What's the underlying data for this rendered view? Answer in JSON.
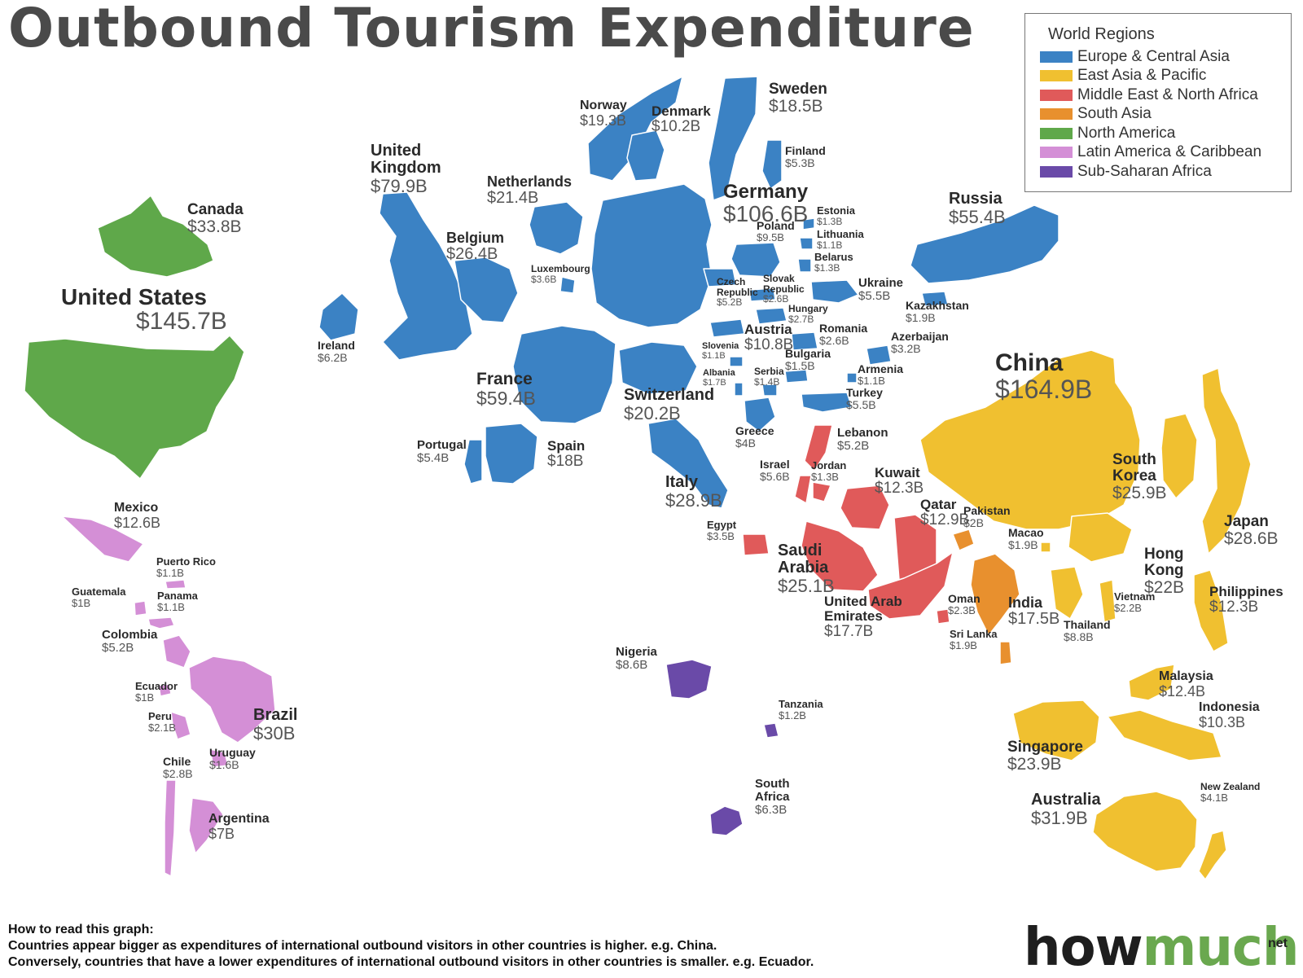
{
  "title": "Outbound Tourism Expenditure",
  "legend": {
    "title": "World Regions",
    "items": [
      {
        "key": "europe",
        "label": "Europe & Central Asia",
        "color": "#3b82c4"
      },
      {
        "key": "eastasia",
        "label": "East Asia & Pacific",
        "color": "#f0c030"
      },
      {
        "key": "mena",
        "label": "Middle East & North Africa",
        "color": "#e05a5a"
      },
      {
        "key": "southasia",
        "label": "South Asia",
        "color": "#e8902e"
      },
      {
        "key": "northamerica",
        "label": "North America",
        "color": "#5fa84a"
      },
      {
        "key": "latam",
        "label": "Latin America & Caribbean",
        "color": "#d48fd6"
      },
      {
        "key": "africa",
        "label": "Sub-Saharan Africa",
        "color": "#6a4aa8"
      }
    ]
  },
  "countries": [
    {
      "name": "United States",
      "value": "$145.7B",
      "region": "northamerica"
    },
    {
      "name": "Canada",
      "value": "$33.8B",
      "region": "northamerica"
    },
    {
      "name": "Mexico",
      "value": "$12.6B",
      "region": "latam"
    },
    {
      "name": "Puerto Rico",
      "value": "$1.1B",
      "region": "latam"
    },
    {
      "name": "Guatemala",
      "value": "$1B",
      "region": "latam"
    },
    {
      "name": "Panama",
      "value": "$1.1B",
      "region": "latam"
    },
    {
      "name": "Colombia",
      "value": "$5.2B",
      "region": "latam"
    },
    {
      "name": "Ecuador",
      "value": "$1B",
      "region": "latam"
    },
    {
      "name": "Peru",
      "value": "$2.1B",
      "region": "latam"
    },
    {
      "name": "Brazil",
      "value": "$30B",
      "region": "latam"
    },
    {
      "name": "Uruguay",
      "value": "$1.6B",
      "region": "latam"
    },
    {
      "name": "Chile",
      "value": "$2.8B",
      "region": "latam"
    },
    {
      "name": "Argentina",
      "value": "$7B",
      "region": "latam"
    },
    {
      "name": "United Kingdom",
      "value": "$79.9B",
      "region": "europe"
    },
    {
      "name": "Ireland",
      "value": "$6.2B",
      "region": "europe"
    },
    {
      "name": "Norway",
      "value": "$19.3B",
      "region": "europe"
    },
    {
      "name": "Denmark",
      "value": "$10.2B",
      "region": "europe"
    },
    {
      "name": "Sweden",
      "value": "$18.5B",
      "region": "europe"
    },
    {
      "name": "Finland",
      "value": "$5.3B",
      "region": "europe"
    },
    {
      "name": "Netherlands",
      "value": "$21.4B",
      "region": "europe"
    },
    {
      "name": "Belgium",
      "value": "$26.4B",
      "region": "europe"
    },
    {
      "name": "Luxembourg",
      "value": "$3.6B",
      "region": "europe"
    },
    {
      "name": "Germany",
      "value": "$106.6B",
      "region": "europe"
    },
    {
      "name": "France",
      "value": "$59.4B",
      "region": "europe"
    },
    {
      "name": "Switzerland",
      "value": "$20.2B",
      "region": "europe"
    },
    {
      "name": "Portugal",
      "value": "$5.4B",
      "region": "europe"
    },
    {
      "name": "Spain",
      "value": "$18B",
      "region": "europe"
    },
    {
      "name": "Italy",
      "value": "$28.9B",
      "region": "europe"
    },
    {
      "name": "Estonia",
      "value": "$1.3B",
      "region": "europe"
    },
    {
      "name": "Poland",
      "value": "$9.5B",
      "region": "europe"
    },
    {
      "name": "Lithuania",
      "value": "$1.1B",
      "region": "europe"
    },
    {
      "name": "Belarus",
      "value": "$1.3B",
      "region": "europe"
    },
    {
      "name": "Czech Republic",
      "value": "$5.2B",
      "region": "europe"
    },
    {
      "name": "Slovak Republic",
      "value": "$2.6B",
      "region": "europe"
    },
    {
      "name": "Ukraine",
      "value": "$5.5B",
      "region": "europe"
    },
    {
      "name": "Hungary",
      "value": "$2.7B",
      "region": "europe"
    },
    {
      "name": "Austria",
      "value": "$10.8B",
      "region": "europe"
    },
    {
      "name": "Romania",
      "value": "$2.6B",
      "region": "europe"
    },
    {
      "name": "Slovenia",
      "value": "$1.1B",
      "region": "europe"
    },
    {
      "name": "Bulgaria",
      "value": "$1.5B",
      "region": "europe"
    },
    {
      "name": "Albania",
      "value": "$1.7B",
      "region": "europe"
    },
    {
      "name": "Serbia",
      "value": "$1.4B",
      "region": "europe"
    },
    {
      "name": "Greece",
      "value": "$4B",
      "region": "europe"
    },
    {
      "name": "Armenia",
      "value": "$1.1B",
      "region": "europe"
    },
    {
      "name": "Azerbaijan",
      "value": "$3.2B",
      "region": "europe"
    },
    {
      "name": "Turkey",
      "value": "$5.5B",
      "region": "europe"
    },
    {
      "name": "Russia",
      "value": "$55.4B",
      "region": "europe"
    },
    {
      "name": "Kazakhstan",
      "value": "$1.9B",
      "region": "europe"
    },
    {
      "name": "Lebanon",
      "value": "$5.2B",
      "region": "mena"
    },
    {
      "name": "Israel",
      "value": "$5.6B",
      "region": "mena"
    },
    {
      "name": "Jordan",
      "value": "$1.3B",
      "region": "mena"
    },
    {
      "name": "Kuwait",
      "value": "$12.3B",
      "region": "mena"
    },
    {
      "name": "Qatar",
      "value": "$12.9B",
      "region": "mena"
    },
    {
      "name": "Egypt",
      "value": "$3.5B",
      "region": "mena"
    },
    {
      "name": "Saudi Arabia",
      "value": "$25.1B",
      "region": "mena"
    },
    {
      "name": "United Arab Emirates",
      "value": "$17.7B",
      "region": "mena"
    },
    {
      "name": "Oman",
      "value": "$2.3B",
      "region": "mena"
    },
    {
      "name": "Pakistan",
      "value": "$2B",
      "region": "southasia"
    },
    {
      "name": "India",
      "value": "$17.5B",
      "region": "southasia"
    },
    {
      "name": "Sri Lanka",
      "value": "$1.9B",
      "region": "southasia"
    },
    {
      "name": "China",
      "value": "$164.9B",
      "region": "eastasia"
    },
    {
      "name": "South Korea",
      "value": "$25.9B",
      "region": "eastasia"
    },
    {
      "name": "Japan",
      "value": "$28.6B",
      "region": "eastasia"
    },
    {
      "name": "Macao",
      "value": "$1.9B",
      "region": "eastasia"
    },
    {
      "name": "Hong Kong",
      "value": "$22B",
      "region": "eastasia"
    },
    {
      "name": "Vietnam",
      "value": "$2.2B",
      "region": "eastasia"
    },
    {
      "name": "Thailand",
      "value": "$8.8B",
      "region": "eastasia"
    },
    {
      "name": "Philippines",
      "value": "$12.3B",
      "region": "eastasia"
    },
    {
      "name": "Malaysia",
      "value": "$12.4B",
      "region": "eastasia"
    },
    {
      "name": "Indonesia",
      "value": "$10.3B",
      "region": "eastasia"
    },
    {
      "name": "Singapore",
      "value": "$23.9B",
      "region": "eastasia"
    },
    {
      "name": "Australia",
      "value": "$31.9B",
      "region": "eastasia"
    },
    {
      "name": "New Zealand",
      "value": "$4.1B",
      "region": "eastasia"
    },
    {
      "name": "Nigeria",
      "value": "$8.6B",
      "region": "africa"
    },
    {
      "name": "Tanzania",
      "value": "$1.2B",
      "region": "africa"
    },
    {
      "name": "South Africa",
      "value": "$6.3B",
      "region": "africa"
    }
  ],
  "howto": {
    "heading": "How to read this graph:",
    "line1": "Countries appear bigger as expenditures of international outbound visitors in other countries is higher. e.g. China.",
    "line2": "Conversely, countries that have a lower expenditures of international outbound visitors in other countries is smaller. e.g. Ecuador."
  },
  "brand": {
    "part1": "how",
    "part2": "much",
    "suffix": "net"
  }
}
